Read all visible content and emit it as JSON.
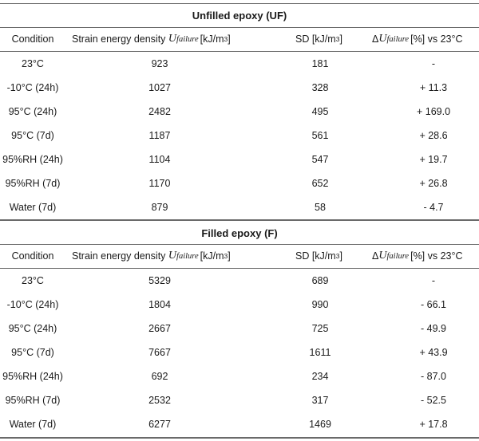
{
  "headers": {
    "condition": "Condition",
    "sed_prefix": "Strain energy density ",
    "sed_var": "U",
    "sed_sub": "failure",
    "sed_unit_open": "[kJ/m",
    "sed_unit_exp": "3",
    "sed_unit_close": "]",
    "sd_prefix": "SD [kJ/m",
    "sd_exp": "3",
    "sd_close": "]",
    "delta_sym": "Δ",
    "delta_var": "U",
    "delta_sub": "failure",
    "delta_rest": " [%] vs 23°C"
  },
  "sections": [
    {
      "title": "Unfilled epoxy (UF)",
      "rows": [
        {
          "condition": "23°C",
          "sed": "923",
          "sd": "181",
          "delta": "-"
        },
        {
          "condition": "-10°C (24h)",
          "sed": "1027",
          "sd": "328",
          "delta": "+ 11.3"
        },
        {
          "condition": "95°C (24h)",
          "sed": "2482",
          "sd": "495",
          "delta": "+ 169.0"
        },
        {
          "condition": "95°C (7d)",
          "sed": "1187",
          "sd": "561",
          "delta": "+ 28.6"
        },
        {
          "condition": "95%RH (24h)",
          "sed": "1104",
          "sd": "547",
          "delta": "+ 19.7"
        },
        {
          "condition": "95%RH (7d)",
          "sed": "1170",
          "sd": "652",
          "delta": "+ 26.8"
        },
        {
          "condition": "Water (7d)",
          "sed": "879",
          "sd": "58",
          "delta": "- 4.7"
        }
      ]
    },
    {
      "title": "Filled epoxy (F)",
      "rows": [
        {
          "condition": "23°C",
          "sed": "5329",
          "sd": "689",
          "delta": "-"
        },
        {
          "condition": "-10°C (24h)",
          "sed": "1804",
          "sd": "990",
          "delta": "- 66.1"
        },
        {
          "condition": "95°C (24h)",
          "sed": "2667",
          "sd": "725",
          "delta": "- 49.9"
        },
        {
          "condition": "95°C (7d)",
          "sed": "7667",
          "sd": "1611",
          "delta": "+ 43.9"
        },
        {
          "condition": "95%RH (24h)",
          "sed": "692",
          "sd": "234",
          "delta": "- 87.0"
        },
        {
          "condition": "95%RH (7d)",
          "sed": "2532",
          "sd": "317",
          "delta": "- 52.5"
        },
        {
          "condition": "Water (7d)",
          "sed": "6277",
          "sd": "1469",
          "delta": "+ 17.8"
        }
      ]
    }
  ]
}
